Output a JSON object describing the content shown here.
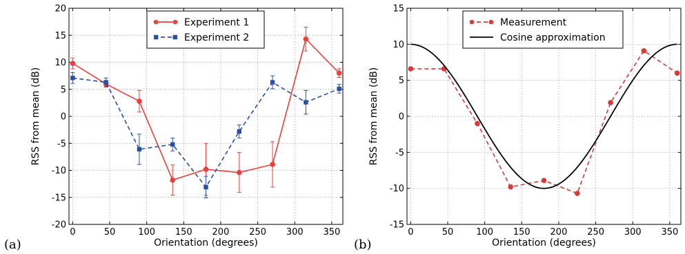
{
  "chart_data": [
    {
      "panel_label": "(a)",
      "type": "line",
      "xlabel": "Orientation (degrees)",
      "ylabel": "RSS from mean (dB)",
      "xlim": [
        -5,
        365
      ],
      "ylim": [
        -20,
        20
      ],
      "xticks": [
        0,
        50,
        100,
        150,
        200,
        250,
        300,
        350
      ],
      "yticks": [
        -20,
        -15,
        -10,
        -5,
        0,
        5,
        10,
        15,
        20
      ],
      "grid": true,
      "legend_position": "top-center",
      "series": [
        {
          "name": "Experiment 1",
          "color": "#e8413e",
          "style": "solid",
          "marker": "circle",
          "x": [
            0,
            45,
            90,
            135,
            180,
            225,
            270,
            315,
            360
          ],
          "y": [
            9.8,
            6.0,
            2.8,
            -11.8,
            -9.8,
            -10.4,
            -8.9,
            14.3,
            8.0
          ],
          "err": [
            1.0,
            0.6,
            2.0,
            2.8,
            4.8,
            3.7,
            4.2,
            2.2,
            0.8
          ]
        },
        {
          "name": "Experiment 2",
          "color": "#2b4fa0",
          "style": "dashed",
          "marker": "square",
          "x": [
            0,
            45,
            90,
            135,
            180,
            225,
            270,
            315,
            360
          ],
          "y": [
            7.1,
            6.3,
            -6.1,
            -5.2,
            -13.1,
            -2.8,
            6.3,
            2.6,
            5.1
          ],
          "err": [
            1.0,
            0.8,
            2.8,
            1.2,
            2.0,
            1.2,
            1.2,
            2.2,
            0.8
          ]
        }
      ]
    },
    {
      "panel_label": "(b)",
      "type": "line",
      "xlabel": "Orientation (degrees)",
      "ylabel": "RSS from mean (dB)",
      "xlim": [
        -5,
        365
      ],
      "ylim": [
        -15,
        15
      ],
      "xticks": [
        0,
        50,
        100,
        150,
        200,
        250,
        300,
        350
      ],
      "yticks": [
        -15,
        -10,
        -5,
        0,
        5,
        10,
        15
      ],
      "grid": true,
      "legend_position": "top-center",
      "series": [
        {
          "name": "Measurement",
          "color": "#d63b3b",
          "style": "dashed",
          "marker": "circle",
          "x": [
            0,
            45,
            90,
            135,
            180,
            225,
            270,
            315,
            360
          ],
          "y": [
            6.6,
            6.6,
            -1.0,
            -9.8,
            -8.9,
            -10.7,
            1.9,
            9.1,
            6.0
          ]
        },
        {
          "name": "Cosine approximation",
          "color": "#000000",
          "style": "solid",
          "marker": "none",
          "function": "10*cos(x degrees)",
          "x": [
            0,
            30,
            60,
            90,
            120,
            150,
            180,
            210,
            240,
            270,
            300,
            330,
            360
          ],
          "y": [
            10,
            8.66,
            5,
            0,
            -5,
            -8.66,
            -10,
            -8.66,
            -5,
            0,
            5,
            8.66,
            10
          ]
        }
      ]
    }
  ]
}
